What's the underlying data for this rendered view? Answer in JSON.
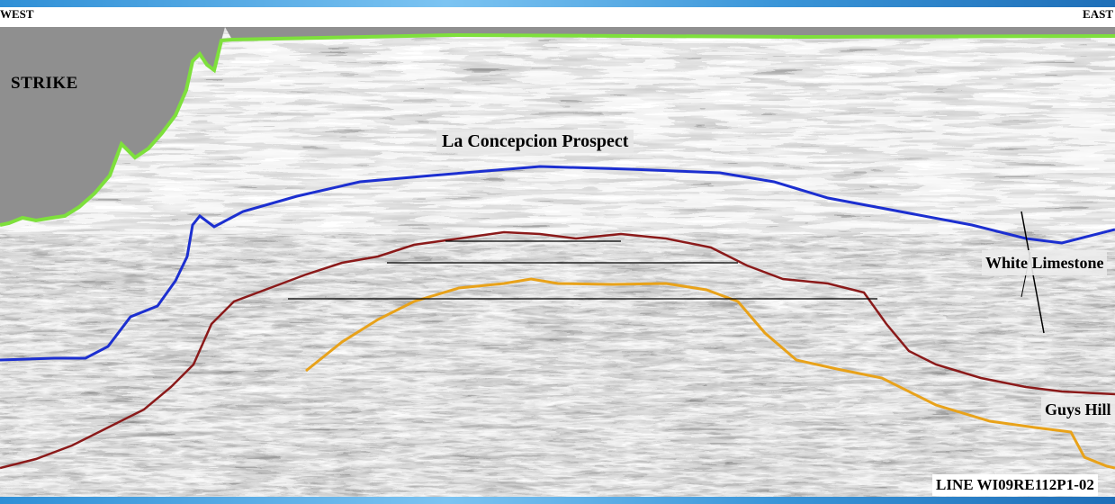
{
  "header": {
    "west_label": "WEST",
    "east_label": "EAST"
  },
  "labels": {
    "strike": "STRIKE",
    "prospect": "La Concepcion Prospect",
    "white_limestone": "White Limestone",
    "guys_hill": "Guys Hill",
    "line_id": "LINE WI09RE112P1-02"
  },
  "colors": {
    "seafloor_horizon": "#7ee03c",
    "white_limestone_horizon": "#1c2fd0",
    "guys_hill_horizon": "#8b1a1a",
    "deep_horizon": "#e8a21a",
    "water_column": "#8f8f8f",
    "frame": "#2f8fd6"
  }
}
